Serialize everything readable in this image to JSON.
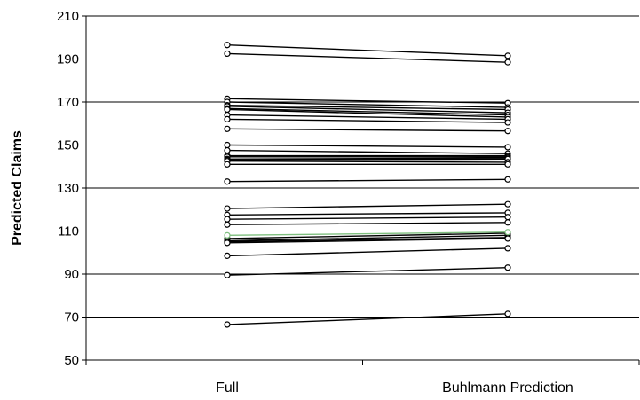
{
  "chart_data": {
    "type": "line",
    "ylabel": "Predicted Claims",
    "xlabel": "",
    "categories": [
      "Full",
      "Buhlmann Prediction"
    ],
    "ylim": [
      50,
      210
    ],
    "yticks": [
      50,
      70,
      90,
      110,
      130,
      150,
      170,
      190,
      210
    ],
    "grid": "horizontal",
    "line_color": "#000000",
    "highlight_color": "#7fbf7f",
    "series": [
      {
        "values": [
          196.5,
          191.5
        ]
      },
      {
        "values": [
          192.5,
          188.5
        ]
      },
      {
        "values": [
          171.5,
          169.5
        ]
      },
      {
        "values": [
          170.0,
          167.5
        ]
      },
      {
        "values": [
          168.5,
          166.5
        ]
      },
      {
        "values": [
          168.0,
          165.0
        ]
      },
      {
        "values": [
          167.0,
          164.0
        ]
      },
      {
        "values": [
          166.5,
          163.0
        ]
      },
      {
        "values": [
          164.0,
          162.0
        ]
      },
      {
        "values": [
          162.0,
          160.5
        ]
      },
      {
        "values": [
          157.5,
          156.5
        ]
      },
      {
        "values": [
          150.0,
          149.0
        ]
      },
      {
        "values": [
          147.5,
          146.0
        ]
      },
      {
        "values": [
          145.0,
          145.0
        ]
      },
      {
        "values": [
          144.5,
          144.5
        ]
      },
      {
        "values": [
          143.5,
          144.0
        ]
      },
      {
        "values": [
          143.0,
          143.5
        ]
      },
      {
        "values": [
          142.5,
          142.0
        ]
      },
      {
        "values": [
          141.0,
          141.0
        ]
      },
      {
        "values": [
          133.0,
          134.0
        ]
      },
      {
        "values": [
          120.5,
          122.5
        ]
      },
      {
        "values": [
          117.5,
          118.5
        ]
      },
      {
        "values": [
          115.5,
          116.5
        ]
      },
      {
        "values": [
          113.0,
          114.0
        ]
      },
      {
        "values": [
          108.0,
          109.5
        ],
        "highlight": true
      },
      {
        "values": [
          106.5,
          109.0
        ]
      },
      {
        "values": [
          105.5,
          108.0
        ]
      },
      {
        "values": [
          105.0,
          107.0
        ]
      },
      {
        "values": [
          104.5,
          106.5
        ]
      },
      {
        "values": [
          98.5,
          102.0
        ]
      },
      {
        "values": [
          89.5,
          93.0
        ]
      },
      {
        "values": [
          66.5,
          71.5
        ]
      }
    ]
  }
}
